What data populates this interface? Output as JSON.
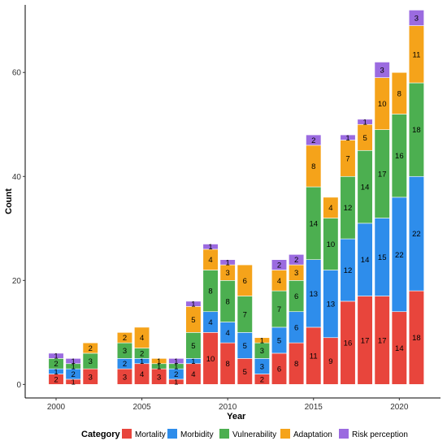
{
  "chart_data": {
    "type": "bar",
    "stacked": true,
    "xlabel": "Year",
    "ylabel": "Count",
    "ylim": [
      0,
      73
    ],
    "y_ticks": [
      0,
      20,
      40,
      60
    ],
    "x_ticks": [
      2000,
      2005,
      2010,
      2015,
      2020
    ],
    "legend_title": "Category",
    "legend_position": "bottom",
    "grid": false,
    "x": [
      2000,
      2001,
      2002,
      2004,
      2005,
      2006,
      2007,
      2008,
      2009,
      2010,
      2011,
      2012,
      2013,
      2014,
      2015,
      2016,
      2017,
      2018,
      2019,
      2020,
      2021
    ],
    "series": [
      {
        "name": "Mortality",
        "color": "#E8453C",
        "values": [
          2,
          1,
          3,
          3,
          4,
          3,
          1,
          4,
          10,
          8,
          5,
          2,
          6,
          8,
          11,
          9,
          16,
          17,
          17,
          14,
          18
        ]
      },
      {
        "name": "Morbidity",
        "color": "#2E8DEB",
        "values": [
          1,
          2,
          0,
          2,
          1,
          0,
          2,
          1,
          4,
          4,
          5,
          3,
          5,
          6,
          13,
          13,
          12,
          14,
          15,
          22,
          22
        ]
      },
      {
        "name": "Vulnerability",
        "color": "#4CAF50",
        "values": [
          2,
          1,
          3,
          3,
          2,
          1,
          1,
          5,
          8,
          8,
          7,
          3,
          7,
          6,
          14,
          10,
          12,
          14,
          17,
          16,
          18
        ]
      },
      {
        "name": "Adaptation",
        "color": "#F5A31A",
        "values": [
          0,
          0,
          2,
          2,
          4,
          1,
          0,
          5,
          4,
          3,
          6,
          1,
          4,
          3,
          8,
          4,
          7,
          5,
          10,
          8,
          11
        ]
      },
      {
        "name": "Risk perception",
        "color": "#9B6BE0",
        "values": [
          1,
          1,
          0,
          0,
          0,
          0,
          1,
          1,
          1,
          1,
          0,
          0,
          2,
          2,
          2,
          0,
          1,
          1,
          3,
          0,
          3
        ]
      }
    ]
  }
}
